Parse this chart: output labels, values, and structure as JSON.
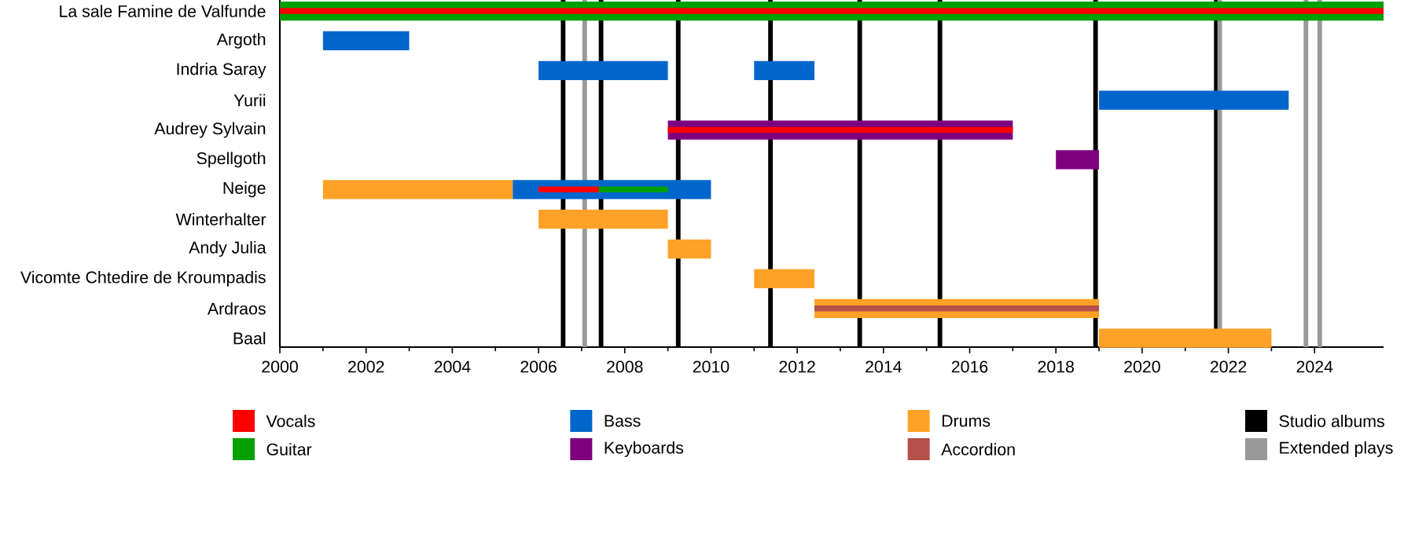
{
  "chart_data": {
    "type": "bar",
    "orientation": "horizontal",
    "legend": "bottom",
    "categories": [
      "La sale Famine de Valfunde",
      "Argoth",
      "Indria Saray",
      "Yurii",
      "Audrey Sylvain",
      "Spellgoth",
      "Neige",
      "Winterhalter",
      "Andy Julia",
      "Vicomte Chtedire de Kroumpadis",
      "Ardraos",
      "Baal"
    ],
    "xlim": [
      2000,
      2025.6
    ],
    "xticks": [
      2000,
      2002,
      2004,
      2006,
      2008,
      2010,
      2012,
      2014,
      2016,
      2018,
      2020,
      2022,
      2024
    ],
    "series": [
      {
        "name": "Vocals",
        "color": "#ff0000",
        "base": [
          2000,
          null,
          null,
          null,
          2009,
          null,
          2006,
          null,
          null,
          null,
          null,
          null
        ],
        "values": [
          25.6,
          null,
          null,
          null,
          8,
          null,
          1.4,
          null,
          null,
          null,
          null,
          null
        ]
      },
      {
        "name": "Guitar",
        "color": "#00a000",
        "base": [
          2000,
          null,
          null,
          null,
          null,
          null,
          2007.4,
          null,
          null,
          null,
          null,
          null
        ],
        "values": [
          25.6,
          null,
          null,
          null,
          null,
          null,
          1.6,
          null,
          null,
          null,
          null,
          null
        ]
      },
      {
        "name": "Bass",
        "color": "#0066cc",
        "base": [
          null,
          2001,
          2006,
          2019,
          null,
          null,
          2005.4,
          null,
          null,
          null,
          null,
          null
        ],
        "values": [
          null,
          2,
          3,
          4.4,
          null,
          null,
          4.6,
          null,
          null,
          null,
          null,
          null
        ]
      },
      {
        "name": "Keyboards",
        "color": "#7f007f",
        "base": [
          null,
          null,
          null,
          null,
          2009,
          2018,
          null,
          null,
          null,
          null,
          null,
          null
        ],
        "values": [
          null,
          null,
          null,
          null,
          8,
          1,
          null,
          null,
          null,
          null,
          null,
          null
        ]
      },
      {
        "name": "Drums",
        "color": "#ffa126",
        "base": [
          null,
          null,
          null,
          null,
          null,
          null,
          2001,
          2006,
          2009,
          2011,
          null,
          2019
        ],
        "values": [
          null,
          null,
          null,
          null,
          null,
          null,
          4.4,
          3,
          1,
          1.4,
          null,
          4
        ]
      },
      {
        "name": "Accordion",
        "color": "#b5504a",
        "base": [
          null,
          null,
          null,
          null,
          null,
          null,
          null,
          null,
          null,
          null,
          2012.4,
          null
        ],
        "values": [
          null,
          null,
          null,
          null,
          null,
          null,
          null,
          null,
          null,
          null,
          6.6,
          null
        ]
      },
      {
        "color": "#0066cc",
        "base": [
          null,
          null,
          2011,
          null,
          null,
          null,
          null,
          null,
          null,
          null,
          null,
          null
        ],
        "values": [
          null,
          null,
          1.4,
          null,
          null,
          null,
          null,
          null,
          null,
          null,
          null,
          null
        ]
      },
      {
        "color": "#ffa126",
        "base": [
          null,
          null,
          null,
          null,
          null,
          null,
          null,
          null,
          null,
          null,
          2012.4,
          null
        ],
        "values": [
          null,
          null,
          null,
          null,
          null,
          null,
          null,
          null,
          null,
          null,
          6.6,
          null
        ]
      }
    ],
    "ref_lines": [
      {
        "axis": "x",
        "value": 2006.57,
        "color": "#000000",
        "label": "Studio albums"
      },
      {
        "axis": "x",
        "value": 2007.45,
        "color": "#000000",
        "label": null
      },
      {
        "axis": "x",
        "value": 2009.24,
        "color": "#000000",
        "label": null
      },
      {
        "axis": "x",
        "value": 2011.38,
        "color": "#000000",
        "label": null
      },
      {
        "axis": "x",
        "value": 2013.45,
        "color": "#000000",
        "label": null
      },
      {
        "axis": "x",
        "value": 2015.31,
        "color": "#000000",
        "label": null
      },
      {
        "axis": "x",
        "value": 2018.92,
        "color": "#000000",
        "label": null
      },
      {
        "axis": "x",
        "value": 2021.72,
        "color": "#000000",
        "label": null
      },
      {
        "axis": "x",
        "value": 2007.07,
        "color": "#999999",
        "label": "Extended plays"
      },
      {
        "axis": "x",
        "value": 2021.8,
        "color": "#999999",
        "label": null
      },
      {
        "axis": "x",
        "value": 2023.8,
        "color": "#999999",
        "label": null
      },
      {
        "axis": "x",
        "value": 2024.12,
        "color": "#999999",
        "label": null
      }
    ]
  }
}
